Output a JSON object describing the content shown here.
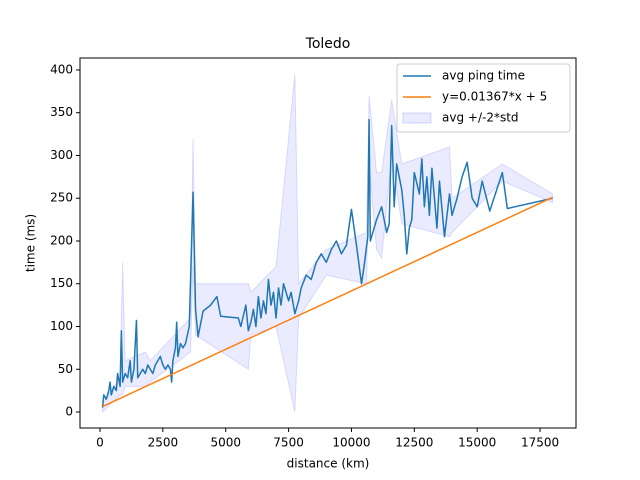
{
  "chart_data": {
    "type": "line",
    "title": "Toledo",
    "x_label": "distance (km)",
    "y_label": "time (ms)",
    "xlim": [
      -795,
      18930
    ],
    "ylim": [
      -18.7,
      414
    ],
    "xticks": [
      0,
      2500,
      5000,
      7500,
      10000,
      12500,
      15000,
      17500
    ],
    "yticks": [
      0,
      50,
      100,
      150,
      200,
      250,
      300,
      350,
      400
    ],
    "legend": "upper right",
    "series": [
      {
        "name": "avg ping time",
        "color": "#1f77b4",
        "x": [
          100,
          150,
          250,
          350,
          400,
          450,
          550,
          650,
          700,
          800,
          850,
          900,
          1000,
          1100,
          1200,
          1250,
          1350,
          1450,
          1500,
          1600,
          1700,
          1800,
          1900,
          2000,
          2100,
          2200,
          2300,
          2400,
          2500,
          2600,
          2700,
          2800,
          2850,
          2900,
          3000,
          3050,
          3100,
          3200,
          3300,
          3400,
          3550,
          3700,
          3800,
          3900,
          4100,
          4400,
          4650,
          4800,
          5500,
          5600,
          5800,
          5900,
          6000,
          6100,
          6200,
          6300,
          6400,
          6500,
          6600,
          6700,
          6800,
          6900,
          7000,
          7100,
          7200,
          7300,
          7500,
          7600,
          7750,
          7900,
          8000,
          8200,
          8400,
          8600,
          8800,
          9000,
          9200,
          9400,
          9600,
          9800,
          10000,
          10200,
          10400,
          10500,
          10650,
          10700,
          10750,
          11000,
          11200,
          11400,
          11500,
          11600,
          11700,
          11800,
          12000,
          12100,
          12200,
          12300,
          12400,
          12500,
          12700,
          12800,
          12900,
          13000,
          13100,
          13200,
          13400,
          13500,
          13700,
          13900,
          14000,
          14200,
          14400,
          14600,
          14800,
          15000,
          15200,
          15500,
          16000,
          16200,
          18000
        ],
        "values": [
          5,
          20,
          15,
          25,
          35,
          20,
          30,
          25,
          45,
          30,
          95,
          35,
          45,
          40,
          60,
          35,
          50,
          107,
          40,
          45,
          50,
          45,
          55,
          50,
          45,
          55,
          60,
          65,
          55,
          50,
          55,
          50,
          35,
          60,
          75,
          105,
          65,
          80,
          75,
          80,
          100,
          257,
          120,
          88,
          118,
          125,
          135,
          112,
          110,
          100,
          125,
          95,
          105,
          120,
          100,
          135,
          110,
          130,
          115,
          155,
          125,
          140,
          110,
          145,
          125,
          150,
          130,
          140,
          115,
          130,
          145,
          160,
          155,
          175,
          185,
          175,
          190,
          200,
          185,
          195,
          237,
          195,
          150,
          170,
          205,
          342,
          200,
          225,
          240,
          210,
          220,
          335,
          240,
          290,
          260,
          230,
          185,
          215,
          225,
          280,
          255,
          296,
          240,
          275,
          230,
          285,
          215,
          270,
          205,
          255,
          230,
          250,
          275,
          292,
          250,
          240,
          270,
          235,
          280,
          238,
          250
        ]
      },
      {
        "name": "y=0.01367*x + 5",
        "color": "#ff7f0e",
        "x": [
          100,
          18000
        ],
        "values": [
          6.367,
          251.06
        ]
      }
    ],
    "band": {
      "name": "avg +/-2*std",
      "color": "#0000ff",
      "x": [
        100,
        800,
        900,
        1000,
        1800,
        2000,
        3600,
        3700,
        3800,
        5900,
        6000,
        7000,
        7750,
        7900,
        9000,
        10600,
        10700,
        11000,
        11200,
        11600,
        12000,
        13900,
        14000,
        16000,
        18000
      ],
      "lower": [
        0,
        20,
        20,
        30,
        30,
        35,
        70,
        170,
        90,
        50,
        90,
        100,
        0,
        110,
        160,
        150,
        290,
        190,
        180,
        300,
        220,
        205,
        210,
        270,
        245
      ],
      "upper": [
        10,
        40,
        175,
        60,
        70,
        60,
        110,
        320,
        150,
        150,
        140,
        170,
        395,
        150,
        190,
        210,
        370,
        280,
        280,
        365,
        290,
        310,
        250,
        290,
        255
      ]
    }
  }
}
